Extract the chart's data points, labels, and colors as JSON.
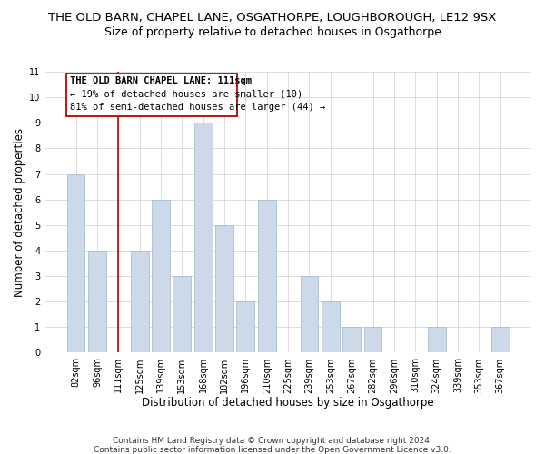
{
  "title": "THE OLD BARN, CHAPEL LANE, OSGATHORPE, LOUGHBOROUGH, LE12 9SX",
  "subtitle": "Size of property relative to detached houses in Osgathorpe",
  "xlabel": "Distribution of detached houses by size in Osgathorpe",
  "ylabel": "Number of detached properties",
  "bin_labels": [
    "82sqm",
    "96sqm",
    "111sqm",
    "125sqm",
    "139sqm",
    "153sqm",
    "168sqm",
    "182sqm",
    "196sqm",
    "210sqm",
    "225sqm",
    "239sqm",
    "253sqm",
    "267sqm",
    "282sqm",
    "296sqm",
    "310sqm",
    "324sqm",
    "339sqm",
    "353sqm",
    "367sqm"
  ],
  "bar_heights": [
    7,
    4,
    0,
    4,
    6,
    3,
    9,
    5,
    2,
    6,
    0,
    3,
    2,
    1,
    1,
    0,
    0,
    1,
    0,
    0,
    1
  ],
  "highlight_index": 2,
  "bar_color": "#ccd9e8",
  "bar_edge_color": "#a0b8cc",
  "highlight_line_color": "#bb0000",
  "ylim": [
    0,
    11
  ],
  "yticks": [
    0,
    1,
    2,
    3,
    4,
    5,
    6,
    7,
    8,
    9,
    10,
    11
  ],
  "annotation_title": "THE OLD BARN CHAPEL LANE: 111sqm",
  "annotation_line1": "← 19% of detached houses are smaller (10)",
  "annotation_line2": "81% of semi-detached houses are larger (44) →",
  "footer1": "Contains HM Land Registry data © Crown copyright and database right 2024.",
  "footer2": "Contains public sector information licensed under the Open Government Licence v3.0.",
  "title_fontsize": 9.5,
  "subtitle_fontsize": 9,
  "axis_label_fontsize": 8.5,
  "tick_fontsize": 7,
  "annotation_fontsize": 7.5,
  "footer_fontsize": 6.5
}
